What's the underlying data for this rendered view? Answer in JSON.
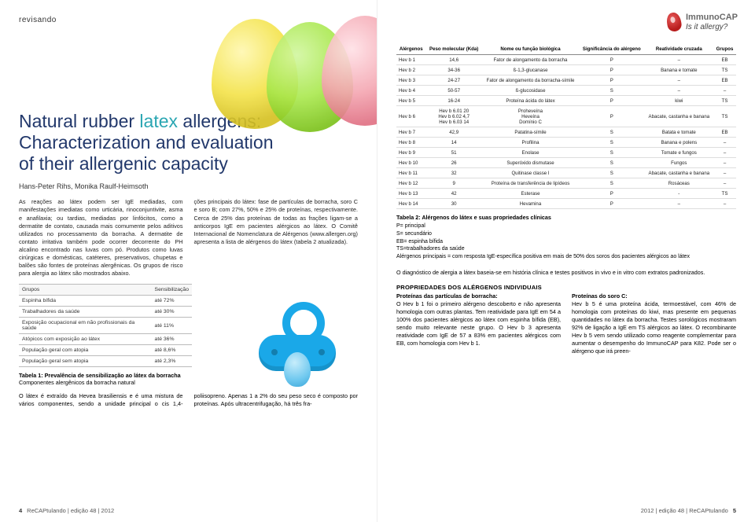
{
  "left": {
    "sectionTag": "revisando",
    "title_part1": "Natural rubber ",
    "title_latex": "latex",
    "title_rest": " allergens:\nCharacterization and evaluation\nof their allergenic capacity",
    "authors": "Hans-Peter Rihs, Monika Raulf-Heimsoth",
    "para1": "As reações ao látex podem ser IgE mediadas, com manifestações imediatas como urticária, rinoconjuntivite, asma e anafilaxia; ou tardias, mediadas por linfócitos, como a dermatite de contato, causada mais comumente pelos aditivos utilizados no processamento da borracha. A dermatite de contato irritativa também pode ocorrer decorrente do PH alcalino encontrado nas luvas com pó. Produtos como luvas cirúrgicas e domésticas, catéteres, preservativos, chupetas e balões são fontes de proteínas alergênicas. Os grupos de risco para alergia ao látex são mostrados abaixo.",
    "para2": "ções principais do látex: fase de partículas de borracha, soro C e soro B; com 27%, 50% e 25% de proteínas, respectivamente. Cerca de 25% das proteínas de todas as frações ligam-se a anticorpos IgE em pacientes alérgicos ao látex. O Comitê Internacional de Nomenclatura de Alérgenos (www.allergen.org) apresenta a lista de alérgenos do látex (tabela 2 atualizada).",
    "table1": {
      "headers": [
        "Grupos",
        "Sensibilização"
      ],
      "rows": [
        [
          "Espinha bífida",
          "até 72%"
        ],
        [
          "Trabalhadores da saúde",
          "até 30%"
        ],
        [
          "Exposição ocupacional em não profissionais da saúde",
          "até 11%"
        ],
        [
          "Atópicos com exposição ao látex",
          "até 36%"
        ],
        [
          "População geral com atopia",
          "até 8,6%"
        ],
        [
          "População geral sem atopia",
          "até 2,3%"
        ]
      ],
      "caption": "Tabela 1: Prevalência de sensibilização ao látex da borracha",
      "subcaption": "Componentes alergênicos da borracha natural"
    },
    "lower": "O látex é extraído da Hevea brasiliensis e é uma mistura de vários componentes, sendo a unidade principal o cis 1,4-poliisopreno. Apenas 1 a 2% do seu peso seco é composto por proteínas. Após ultracentrifugação, há três fra-",
    "footer": {
      "num": "4",
      "text": "ReCAPtulando | edição 48 | 2012"
    }
  },
  "right": {
    "brand": {
      "name": "ImmunoCAP",
      "tag": "Is it allergy?"
    },
    "table2": {
      "headers": [
        "Alérgenos",
        "Peso molecular (Kda)",
        "Nome ou função biológica",
        "Significância do alérgeno",
        "Reatividade cruzada",
        "Grupos"
      ],
      "rows": [
        [
          "Hev b 1",
          "14,6",
          "Fator de alongamento da borracha",
          "P",
          "–",
          "EB"
        ],
        [
          "Hev b 2",
          "34-36",
          "ß-1,3-glucanase",
          "P",
          "Banana e tomate",
          "TS"
        ],
        [
          "Hev b 3",
          "24-27",
          "Fator de alongamento da borracha-símile",
          "P",
          "–",
          "EB"
        ],
        [
          "Hev b 4",
          "50-57",
          "ß-glucosidase",
          "S",
          "–",
          "–"
        ],
        [
          "Hev b 5",
          "16-24",
          "Proteína ácida do látex",
          "P",
          "kiwi",
          "TS"
        ],
        [
          "Hev b 6",
          "Hev b 6.01  20\nHev b 6.02  4,7\nHev b 6.03  14",
          "Proheveína\nHeveína\nDomínio C",
          "P",
          "Abacate, castanha e banana",
          "TS"
        ],
        [
          "Hev b 7",
          "42,9",
          "Patatina-símile",
          "S",
          "Batata e tomate",
          "EB"
        ],
        [
          "Hev b 8",
          "14",
          "Profilina",
          "S",
          "Banana e polens",
          "–"
        ],
        [
          "Hev b 9",
          "51",
          "Enolase",
          "S",
          "Tomate e fungos",
          "–"
        ],
        [
          "Hev b 10",
          "26",
          "Superóxido dismutase",
          "S",
          "Fungos",
          "–"
        ],
        [
          "Hev b 11",
          "32",
          "Quitinase classe I",
          "S",
          "Abacate, castanha e banana",
          "–"
        ],
        [
          "Hev b 12",
          "9",
          "Proteína de transferência de lipídeos",
          "S",
          "Rosáceas",
          "–"
        ],
        [
          "Hev b 13",
          "42",
          "Esterase",
          "P",
          "-",
          "TS"
        ],
        [
          "Hev b 14",
          "30",
          "Hevamina",
          "P",
          "–",
          "–"
        ]
      ],
      "caption": "Tabela 2: Alérgenos do látex e suas propriedades clínicas",
      "legend": "P= principal\nS= secundário\nEB= espinha bífida\nTS=trabalhadores da saúde\nAlérgenos principais = com resposta IgE-específica positiva em mais de 50% dos soros dos pacientes alérgicos ao látex"
    },
    "diag": "O diagnóstico de alergia a látex baseia-se em história clínica e testes positivos in vivo e in vitro com extratos padronizados.",
    "propsTitle": "PROPRIEDADES DOS ALÉRGENOS INDIVIDUAIS",
    "col1Head": "Proteínas das partículas de borracha:",
    "col1": "O Hev b 1 foi o primeiro alérgeno descoberto e não apresenta homologia com outras plantas. Tem reatividade para IgE em 54 a 100% dos pacientes alérgicos ao látex com espinha bífida (EB), sendo muito relevante neste grupo. O Hev b 3 apresenta reatividade com IgE de 57 a 83% em pacientes alérgicos com EB, com homologia com Hev b 1.",
    "col2Head": "Proteínas do soro C:",
    "col2": "Hev b 5 é uma proteína ácida, termoestável, com 46% de homologia com proteínas do kiwi, mas presente em pequenas quantidades no látex da borracha. Testes sorológicos mostraram 92% de ligação a IgE em TS alérgicos ao látex. O recombinante Hev b 5 vem sendo utilizado como reagente complementar para aumentar o desempenho do ImmunoCAP  para K82. Pode ser o alérgeno que irá preen-",
    "footer": {
      "text": "2012 | edição 48 | ReCAPtulando",
      "num": "5"
    }
  },
  "colors": {
    "navy": "#22386b",
    "teal": "#2aa6b2",
    "brand": "#6a6a6a"
  }
}
